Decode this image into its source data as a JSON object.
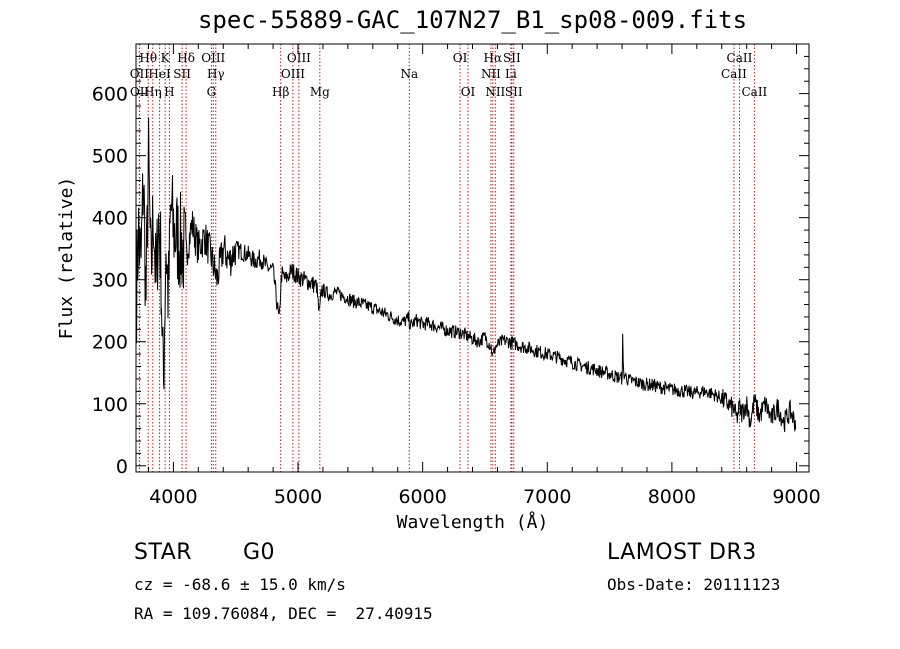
{
  "chart_data": {
    "type": "line",
    "title": "spec-55889-GAC_107N27_B1_sp08-009.fits",
    "xlabel": "Wavelength (Å)",
    "ylabel": "Flux (relative)",
    "xlim": [
      3700,
      9100
    ],
    "ylim": [
      -10,
      680
    ],
    "xticks": [
      4000,
      5000,
      6000,
      7000,
      8000,
      9000
    ],
    "xtick_labels": [
      "4000",
      "5000",
      "6000",
      "7000",
      "8000",
      "9000"
    ],
    "yticks": [
      0,
      100,
      200,
      300,
      400,
      500,
      600
    ],
    "ytick_labels": [
      "0",
      "100",
      "200",
      "300",
      "400",
      "500",
      "600"
    ],
    "series": [
      {
        "name": "spectrum",
        "x": [
          3700,
          3720,
          3740,
          3760,
          3780,
          3800,
          3820,
          3840,
          3860,
          3880,
          3900,
          3920,
          3940,
          3960,
          3980,
          4000,
          4050,
          4100,
          4150,
          4200,
          4250,
          4300,
          4350,
          4400,
          4450,
          4500,
          4550,
          4600,
          4650,
          4700,
          4750,
          4800,
          4850,
          4860,
          4870,
          4900,
          4950,
          5000,
          5050,
          5100,
          5150,
          5170,
          5190,
          5250,
          5300,
          5350,
          5400,
          5450,
          5500,
          5550,
          5600,
          5650,
          5700,
          5750,
          5800,
          5850,
          5890,
          5900,
          5950,
          6000,
          6050,
          6100,
          6150,
          6200,
          6250,
          6300,
          6350,
          6400,
          6450,
          6500,
          6550,
          6563,
          6580,
          6600,
          6650,
          6700,
          6750,
          6800,
          6850,
          6900,
          6950,
          7000,
          7050,
          7100,
          7150,
          7200,
          7250,
          7300,
          7350,
          7400,
          7450,
          7500,
          7550,
          7600,
          7605,
          7610,
          7650,
          7700,
          7750,
          7800,
          7850,
          7900,
          7950,
          8000,
          8050,
          8100,
          8150,
          8200,
          8250,
          8300,
          8350,
          8400,
          8450,
          8500,
          8520,
          8542,
          8560,
          8600,
          8630,
          8662,
          8700,
          8750,
          8800,
          8850,
          8900,
          8950,
          9000
        ],
        "values": [
          250,
          380,
          320,
          470,
          260,
          500,
          300,
          420,
          280,
          400,
          330,
          120,
          360,
          270,
          420,
          380,
          360,
          340,
          390,
          350,
          370,
          340,
          300,
          350,
          330,
          350,
          345,
          340,
          330,
          335,
          320,
          315,
          230,
          285,
          310,
          300,
          315,
          305,
          300,
          295,
          290,
          240,
          285,
          275,
          280,
          275,
          270,
          265,
          262,
          258,
          255,
          250,
          245,
          240,
          235,
          232,
          238,
          225,
          235,
          228,
          230,
          225,
          222,
          218,
          216,
          215,
          210,
          205,
          200,
          208,
          192,
          175,
          190,
          195,
          202,
          200,
          196,
          192,
          190,
          186,
          183,
          180,
          177,
          174,
          170,
          167,
          163,
          160,
          157,
          154,
          151,
          148,
          144,
          141,
          205,
          150,
          138,
          136,
          133,
          131,
          130,
          127,
          125,
          123,
          122,
          120,
          118,
          118,
          120,
          118,
          114,
          108,
          100,
          90,
          75,
          95,
          85,
          100,
          70,
          105,
          80,
          100,
          75,
          95,
          70,
          88,
          65
        ]
      }
    ],
    "spectral_lines": [
      {
        "name": "OII",
        "wavelength": 3727,
        "row": 2
      },
      {
        "name": "OII",
        "wavelength": 3729,
        "row": 3
      },
      {
        "name": "Hθ",
        "wavelength": 3798,
        "row": 1
      },
      {
        "name": "Hη",
        "wavelength": 3835,
        "row": 3
      },
      {
        "name": "HeI",
        "wavelength": 3889,
        "row": 2
      },
      {
        "name": "K",
        "wavelength": 3934,
        "row": 1
      },
      {
        "name": "H",
        "wavelength": 3968,
        "row": 3
      },
      {
        "name": "SII",
        "wavelength": 4070,
        "row": 2
      },
      {
        "name": "Hδ",
        "wavelength": 4102,
        "row": 1
      },
      {
        "name": "OIII",
        "wavelength": 4320,
        "row": 1
      },
      {
        "name": "Hγ",
        "wavelength": 4340,
        "row": 2
      },
      {
        "name": "G",
        "wavelength": 4305,
        "row": 3
      },
      {
        "name": "Hβ",
        "wavelength": 4861,
        "row": 3
      },
      {
        "name": "OIII",
        "wavelength": 4959,
        "row": 2
      },
      {
        "name": "OIII",
        "wavelength": 5007,
        "row": 1
      },
      {
        "name": "Mg",
        "wavelength": 5175,
        "row": 3
      },
      {
        "name": "Na",
        "wavelength": 5893,
        "row": 2
      },
      {
        "name": "OI",
        "wavelength": 6300,
        "row": 1
      },
      {
        "name": "OI",
        "wavelength": 6364,
        "row": 3
      },
      {
        "name": "NII",
        "wavelength": 6548,
        "row": 2
      },
      {
        "name": "Hα",
        "wavelength": 6563,
        "row": 1
      },
      {
        "name": "NII",
        "wavelength": 6583,
        "row": 3
      },
      {
        "name": "Li",
        "wavelength": 6708,
        "row": 2
      },
      {
        "name": "SII",
        "wavelength": 6716,
        "row": 1
      },
      {
        "name": "SII",
        "wavelength": 6731,
        "row": 3
      },
      {
        "name": "CaII",
        "wavelength": 8498,
        "row": 2
      },
      {
        "name": "CaII",
        "wavelength": 8542,
        "row": 1
      },
      {
        "name": "CaII",
        "wavelength": 8662,
        "row": 3
      }
    ],
    "colors": {
      "spectrum": "#000000",
      "lines": "#b22222",
      "axes": "#000000"
    }
  },
  "info": {
    "class": "STAR",
    "subclass": "G0",
    "survey": "LAMOST DR3",
    "cz": "cz = -68.6 ± 15.0 km/s",
    "obs_date": "Obs-Date: 20111123",
    "coords": "RA = 109.76084, DEC =  27.40915"
  }
}
